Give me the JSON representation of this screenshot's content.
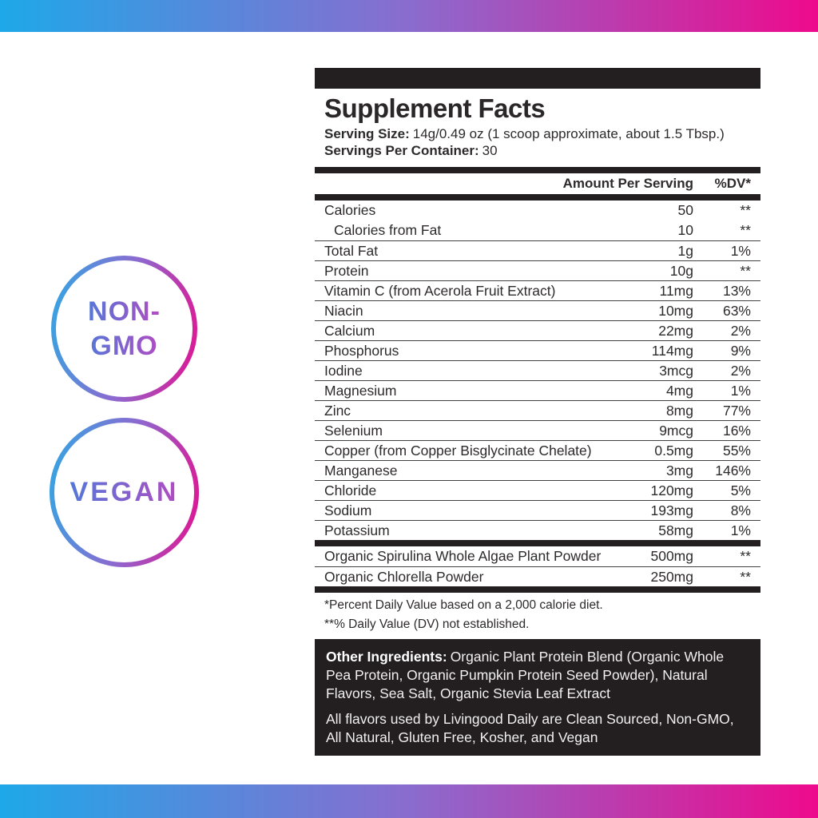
{
  "colors": {
    "gradient_start": "#1ea8e9",
    "gradient_end": "#ee0a8c",
    "label_black": "#231f20",
    "badge_text_start": "#5577d8",
    "badge_text_end": "#b04cc2"
  },
  "badges": [
    {
      "id": "non-gmo",
      "lines": [
        "NON-",
        "GMO"
      ]
    },
    {
      "id": "vegan",
      "lines": [
        "VEGAN"
      ]
    }
  ],
  "panel": {
    "title": "Supplement Facts",
    "serving_size_label": "Serving Size:",
    "serving_size_value": "14g/0.49 oz (1 scoop approximate, about 1.5 Tbsp.)",
    "servings_label": "Servings Per Container:",
    "servings_value": "30",
    "columns": {
      "amount": "Amount Per Serving",
      "dv": "%DV*"
    },
    "rows": [
      {
        "name": "Calories",
        "amount": "50",
        "dv": "**",
        "divider": false
      },
      {
        "name": "Calories from Fat",
        "amount": "10",
        "dv": "**",
        "divider": false,
        "indent": true
      },
      {
        "name": "Total Fat",
        "amount": "1g",
        "dv": "1%",
        "divider": true
      },
      {
        "name": "Protein",
        "amount": "10g",
        "dv": "**",
        "divider": true
      },
      {
        "name": "Vitamin C (from Acerola Fruit Extract)",
        "amount": "11mg",
        "dv": "13%",
        "divider": true
      },
      {
        "name": "Niacin",
        "amount": "10mg",
        "dv": "63%",
        "divider": true
      },
      {
        "name": "Calcium",
        "amount": "22mg",
        "dv": "2%",
        "divider": true
      },
      {
        "name": "Phosphorus",
        "amount": "114mg",
        "dv": "9%",
        "divider": true
      },
      {
        "name": "Iodine",
        "amount": "3mcg",
        "dv": "2%",
        "divider": true
      },
      {
        "name": "Magnesium",
        "amount": "4mg",
        "dv": "1%",
        "divider": true
      },
      {
        "name": "Zinc",
        "amount": "8mg",
        "dv": "77%",
        "divider": true
      },
      {
        "name": "Selenium",
        "amount": "9mcg",
        "dv": "16%",
        "divider": true
      },
      {
        "name": "Copper (from Copper Bisglycinate Chelate)",
        "amount": "0.5mg",
        "dv": "55%",
        "divider": true
      },
      {
        "name": "Manganese",
        "amount": "3mg",
        "dv": "146%",
        "divider": true
      },
      {
        "name": "Chloride",
        "amount": "120mg",
        "dv": "5%",
        "divider": true
      },
      {
        "name": "Sodium",
        "amount": "193mg",
        "dv": "8%",
        "divider": true
      },
      {
        "name": "Potassium",
        "amount": "58mg",
        "dv": "1%",
        "divider": true
      }
    ],
    "extra_rows": [
      {
        "name": "Organic Spirulina Whole Algae Plant Powder",
        "amount": "500mg",
        "dv": "**",
        "divider": false
      },
      {
        "name": "Organic Chlorella Powder",
        "amount": "250mg",
        "dv": "**",
        "divider": true
      }
    ],
    "footnotes": [
      "*Percent Daily Value based on a 2,000 calorie diet.",
      "**% Daily Value (DV) not established."
    ],
    "other_ingredients_label": "Other Ingredients:",
    "other_ingredients_text": "Organic Plant Protein Blend (Organic Whole Pea Protein, Organic Pumpkin Protein Seed Powder), Natural Flavors, Sea Salt, Organic Stevia Leaf Extract",
    "flavors_text": "All flavors used by Livingood Daily are Clean Sourced, Non-GMO, All Natural, Gluten Free, Kosher, and Vegan"
  }
}
